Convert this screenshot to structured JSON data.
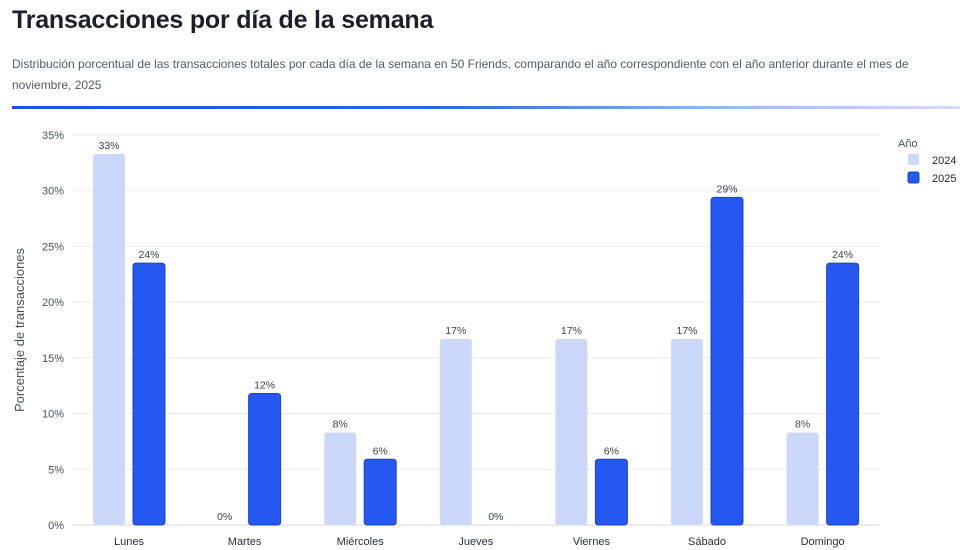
{
  "page": {
    "title": "Transacciones por día de la semana",
    "subtitle": "Distribución porcentual de las transacciones totales por cada día de la semana en 50 Friends, comparando el año correspondiente con el año anterior durante el mes de noviembre, 2025"
  },
  "colors": {
    "series_2024": "#ccd8fa",
    "series_2025": "#2458f0",
    "series_2025_stroke": "#1a44c8",
    "grid": "#e9ebf0",
    "accent": "#1f4fe0"
  },
  "chart_data": {
    "type": "bar",
    "title": "Transacciones por día de la semana",
    "xlabel": "",
    "ylabel": "Porcentaje de transacciones",
    "ylim": [
      0,
      35
    ],
    "yticks": [
      0,
      5,
      10,
      15,
      20,
      25,
      30,
      35
    ],
    "ytick_labels": [
      "0%",
      "5%",
      "10%",
      "15%",
      "20%",
      "25%",
      "30%",
      "35%"
    ],
    "grid": true,
    "legend_title": "Año",
    "legend_position": "top-right",
    "categories": [
      "Lunes",
      "Martes",
      "Miércoles",
      "Jueves",
      "Viernes",
      "Sábado",
      "Domingo"
    ],
    "series": [
      {
        "name": "2024",
        "values": [
          33.3,
          0,
          8.3,
          16.7,
          16.7,
          16.7,
          8.3
        ],
        "labels": [
          "33%",
          "0%",
          "8%",
          "17%",
          "17%",
          "17%",
          "8%"
        ]
      },
      {
        "name": "2025",
        "values": [
          23.5,
          11.8,
          5.9,
          0,
          5.9,
          29.4,
          23.5
        ],
        "labels": [
          "24%",
          "12%",
          "6%",
          "0%",
          "6%",
          "29%",
          "24%"
        ]
      }
    ]
  }
}
